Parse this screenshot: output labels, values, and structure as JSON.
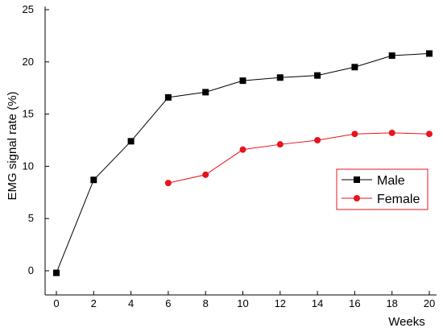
{
  "chart_data": {
    "type": "line",
    "xlabel": "Weeks",
    "ylabel": "EMG signal rate (%)",
    "xlim": [
      0,
      20
    ],
    "ylim": [
      0,
      25
    ],
    "x_ticks": [
      0,
      2,
      4,
      6,
      8,
      10,
      12,
      14,
      16,
      18,
      20
    ],
    "y_ticks": [
      0,
      5,
      10,
      15,
      20,
      25
    ],
    "grid": false,
    "legend_position": "right",
    "series": [
      {
        "name": "Male",
        "color": "#000000",
        "marker": "square",
        "x": [
          0,
          2,
          4,
          6,
          8,
          10,
          12,
          14,
          16,
          18,
          20
        ],
        "values": [
          -0.2,
          8.7,
          12.4,
          16.6,
          17.1,
          18.2,
          18.5,
          18.7,
          19.5,
          20.6,
          20.8
        ]
      },
      {
        "name": "Female",
        "color": "#e8141c",
        "marker": "circle",
        "x": [
          6,
          8,
          10,
          12,
          14,
          16,
          18,
          20
        ],
        "values": [
          8.4,
          9.2,
          11.6,
          12.1,
          12.5,
          13.1,
          13.2,
          13.1
        ]
      }
    ]
  }
}
